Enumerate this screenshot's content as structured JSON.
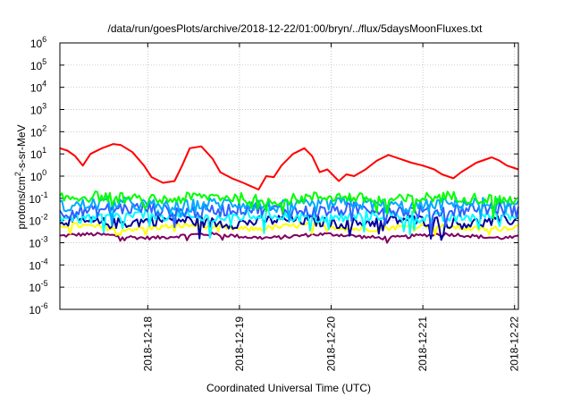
{
  "chart_data": {
    "type": "line",
    "title": "/data/run/goesPlots/archive/2018-12-22/01:00/bryn/../flux/5daysMoonFluxes.txt",
    "xlabel": "Coordinated Universal Time (UTC)",
    "ylabel": "protons/cm²-s-sr-MeV",
    "xlim": [
      "2018-12-17 01:00",
      "2018-12-22 01:00"
    ],
    "ylim": [
      1e-06,
      1000000.0
    ],
    "y_scale": "log",
    "grid": true,
    "x_ticks": [
      "2018-12-18",
      "2018-12-19",
      "2018-12-20",
      "2018-12-21",
      "2018-12-22"
    ],
    "y_ticks": [
      {
        "base": "10",
        "exp": "-6"
      },
      {
        "base": "10",
        "exp": "-5"
      },
      {
        "base": "10",
        "exp": "-4"
      },
      {
        "base": "10",
        "exp": "-3"
      },
      {
        "base": "10",
        "exp": "-2"
      },
      {
        "base": "10",
        "exp": "-1"
      },
      {
        "base": "10",
        "exp": "0"
      },
      {
        "base": "10",
        "exp": "1"
      },
      {
        "base": "10",
        "exp": "2"
      },
      {
        "base": "10",
        "exp": "3"
      },
      {
        "base": "10",
        "exp": "4"
      },
      {
        "base": "10",
        "exp": "5"
      },
      {
        "base": "10",
        "exp": "6"
      }
    ],
    "series": [
      {
        "color": "#ff0000",
        "values": [
          [
            "2018-12-17 01:00",
            18
          ],
          [
            "2018-12-17 03:00",
            14
          ],
          [
            "2018-12-17 05:00",
            8
          ],
          [
            "2018-12-17 07:00",
            3
          ],
          [
            "2018-12-17 09:00",
            10
          ],
          [
            "2018-12-17 12:00",
            18
          ],
          [
            "2018-12-17 15:00",
            28
          ],
          [
            "2018-12-17 17:00",
            25
          ],
          [
            "2018-12-17 20:00",
            12
          ],
          [
            "2018-12-17 23:00",
            3
          ],
          [
            "2018-12-18 01:00",
            0.9
          ],
          [
            "2018-12-18 04:00",
            0.5
          ],
          [
            "2018-12-18 07:00",
            0.6
          ],
          [
            "2018-12-18 09:00",
            3
          ],
          [
            "2018-12-18 11:00",
            18
          ],
          [
            "2018-12-18 14:00",
            22
          ],
          [
            "2018-12-18 17:00",
            6
          ],
          [
            "2018-12-18 19:00",
            1.5
          ],
          [
            "2018-12-18 22:00",
            0.8
          ],
          [
            "2018-12-19 01:00",
            0.5
          ],
          [
            "2018-12-19 03:00",
            0.35
          ],
          [
            "2018-12-19 05:00",
            0.25
          ],
          [
            "2018-12-19 07:00",
            1.0
          ],
          [
            "2018-12-19 09:00",
            0.9
          ],
          [
            "2018-12-19 11:00",
            3
          ],
          [
            "2018-12-19 14:00",
            10
          ],
          [
            "2018-12-19 17:00",
            18
          ],
          [
            "2018-12-19 19:00",
            8
          ],
          [
            "2018-12-19 21:00",
            1.5
          ],
          [
            "2018-12-19 23:00",
            2
          ],
          [
            "2018-12-20 02:00",
            0.6
          ],
          [
            "2018-12-20 04:00",
            1.2
          ],
          [
            "2018-12-20 06:00",
            1.0
          ],
          [
            "2018-12-20 09:00",
            2
          ],
          [
            "2018-12-20 12:00",
            5
          ],
          [
            "2018-12-20 15:00",
            9
          ],
          [
            "2018-12-20 18:00",
            6
          ],
          [
            "2018-12-20 21:00",
            4
          ],
          [
            "2018-12-21 00:00",
            3
          ],
          [
            "2018-12-21 03:00",
            2
          ],
          [
            "2018-12-21 05:00",
            1.2
          ],
          [
            "2018-12-21 08:00",
            0.8
          ],
          [
            "2018-12-21 10:00",
            1.5
          ],
          [
            "2018-12-21 14:00",
            4
          ],
          [
            "2018-12-21 18:00",
            7
          ],
          [
            "2018-12-21 20:00",
            5
          ],
          [
            "2018-12-21 22:00",
            3
          ],
          [
            "2018-12-22 01:00",
            2
          ]
        ]
      },
      {
        "color": "#00ff00",
        "level": 0.1,
        "amp": 0.25
      },
      {
        "color": "#00aaff",
        "level": 0.05,
        "amp": 0.3
      },
      {
        "color": "#3060ff",
        "level": 0.03,
        "amp": 0.3
      },
      {
        "color": "#00ffff",
        "level": 0.015,
        "amp": 0.25
      },
      {
        "color": "#000099",
        "level": 0.009,
        "amp": 0.25
      },
      {
        "color": "#ffff00",
        "level": 0.005,
        "amp": 0.12
      },
      {
        "color": "#800060",
        "level": 0.002,
        "amp": 0.08
      }
    ]
  }
}
